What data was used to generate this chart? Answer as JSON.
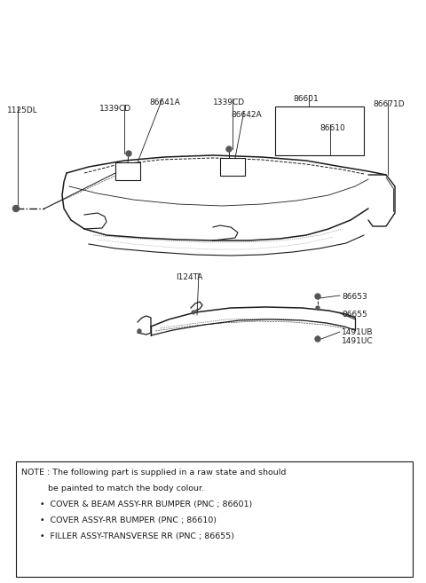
{
  "bg_color": "#ffffff",
  "line_color": "#1a1a1a",
  "fig_width": 4.8,
  "fig_height": 6.57,
  "dpi": 100,
  "note_lines": [
    "NOTE : The following part is supplied in a raw state and should",
    "          be painted to match the body colour.",
    "       •  COVER & BEAM ASSY-RR BUMPER (PNC ; 86601)",
    "       •  COVER ASSY-RR BUMPER (PNC ; 86610)",
    "       •  FILLER ASSY-TRANSVERSE RR (PNC ; 86655)"
  ],
  "label_fontsize": 6.5,
  "note_fontsize": 6.8
}
